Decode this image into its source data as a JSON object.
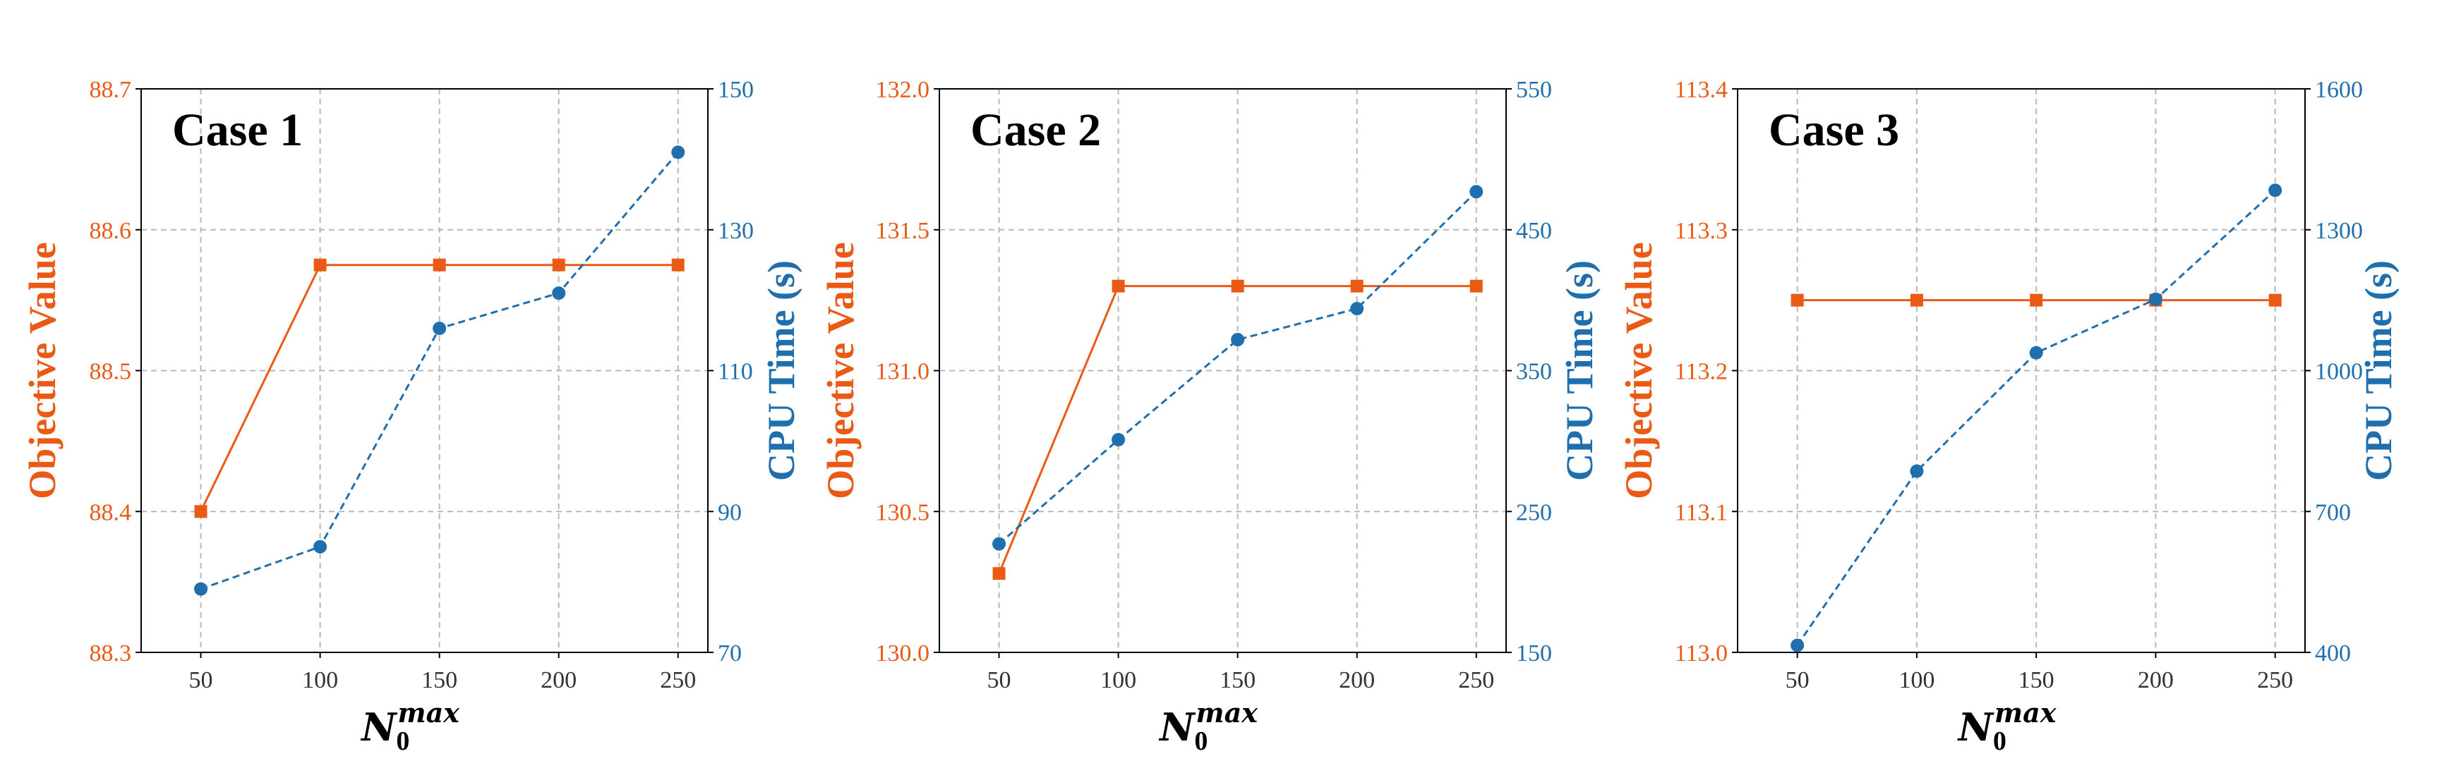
{
  "chart_data": [
    {
      "type": "line",
      "title": "Case 1",
      "xlabel_base": "N",
      "xlabel_sub": "0",
      "xlabel_sup": "max",
      "ylabel": "Objective Value",
      "y2label": "CPU Time (s)",
      "x": [
        50,
        100,
        150,
        200,
        250
      ],
      "ylim": [
        88.3,
        88.7
      ],
      "yticks": [
        "88.3",
        "88.4",
        "88.5",
        "88.6",
        "88.7"
      ],
      "y2lim": [
        70,
        150
      ],
      "y2ticks": [
        "70",
        "90",
        "110",
        "130",
        "150"
      ],
      "grid": true,
      "series": [
        {
          "axis": "left",
          "color": "#ea5a14",
          "marker": "square",
          "linestyle": "solid",
          "values": [
            88.4,
            88.575,
            88.575,
            88.575,
            88.575
          ]
        },
        {
          "axis": "right",
          "color": "#1f6fae",
          "marker": "circle",
          "linestyle": "dashed",
          "values": [
            79,
            85,
            116,
            121,
            141
          ]
        }
      ]
    },
    {
      "type": "line",
      "title": "Case 2",
      "xlabel_base": "N",
      "xlabel_sub": "0",
      "xlabel_sup": "max",
      "ylabel": "Objective Value",
      "y2label": "CPU Time (s)",
      "x": [
        50,
        100,
        150,
        200,
        250
      ],
      "ylim": [
        130.0,
        132.0
      ],
      "yticks": [
        "130.0",
        "130.5",
        "131.0",
        "131.5",
        "132.0"
      ],
      "y2lim": [
        150,
        550
      ],
      "y2ticks": [
        "150",
        "250",
        "350",
        "450",
        "550"
      ],
      "grid": true,
      "series": [
        {
          "axis": "left",
          "color": "#ea5a14",
          "marker": "square",
          "linestyle": "solid",
          "values": [
            130.28,
            131.3,
            131.3,
            131.3,
            131.3
          ]
        },
        {
          "axis": "right",
          "color": "#1f6fae",
          "marker": "circle",
          "linestyle": "dashed",
          "values": [
            227,
            301,
            372,
            394,
            477
          ]
        }
      ]
    },
    {
      "type": "line",
      "title": "Case 3",
      "xlabel_base": "N",
      "xlabel_sub": "0",
      "xlabel_sup": "max",
      "ylabel": "Objective Value",
      "y2label": "CPU Time (s)",
      "x": [
        50,
        100,
        150,
        200,
        250
      ],
      "ylim": [
        113.0,
        113.4
      ],
      "yticks": [
        "113.0",
        "113.1",
        "113.2",
        "113.3",
        "113.4"
      ],
      "y2lim": [
        400,
        1600
      ],
      "y2ticks": [
        "400",
        "700",
        "1000",
        "1300",
        "1600"
      ],
      "grid": true,
      "series": [
        {
          "axis": "left",
          "color": "#ea5a14",
          "marker": "square",
          "linestyle": "solid",
          "values": [
            113.25,
            113.25,
            113.25,
            113.25,
            113.25
          ]
        },
        {
          "axis": "right",
          "color": "#1f6fae",
          "marker": "circle",
          "linestyle": "dashed",
          "values": [
            415,
            786,
            1038,
            1152,
            1384
          ]
        }
      ]
    }
  ]
}
